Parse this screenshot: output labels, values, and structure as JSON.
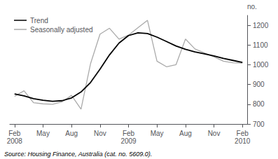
{
  "chart_data": {
    "type": "line",
    "y_label": "no.",
    "annotations": [
      "Source: Housing Finance, Australia (cat. no. 5609.0)."
    ],
    "categories": [
      "Feb\n2008",
      null,
      null,
      "May",
      null,
      null,
      "Aug",
      null,
      null,
      "Nov",
      null,
      null,
      "Feb\n2009",
      null,
      null,
      "May",
      null,
      null,
      "Aug",
      null,
      null,
      "Nov",
      null,
      null,
      "Feb\n2010"
    ],
    "series": [
      {
        "name": "Seasonally adjusted",
        "color": "#aaaaaa",
        "values": [
          840,
          868,
          808,
          802,
          800,
          812,
          845,
          775,
          1005,
          1155,
          1185,
          1130,
          1150,
          1188,
          1225,
          1018,
          990,
          1000,
          1130,
          1080,
          1060,
          1040,
          1018,
          1010,
          1008
        ]
      },
      {
        "name": "Trend",
        "color": "#000000",
        "values": [
          852,
          842,
          828,
          820,
          815,
          818,
          832,
          862,
          910,
          978,
          1050,
          1110,
          1148,
          1162,
          1158,
          1140,
          1118,
          1095,
          1078,
          1065,
          1055,
          1045,
          1032,
          1022,
          1012
        ]
      }
    ],
    "ylim": [
      700,
      1250
    ],
    "yticks": [
      700,
      800,
      900,
      1000,
      1100,
      1200
    ],
    "grid": false,
    "legend": "upper left"
  }
}
